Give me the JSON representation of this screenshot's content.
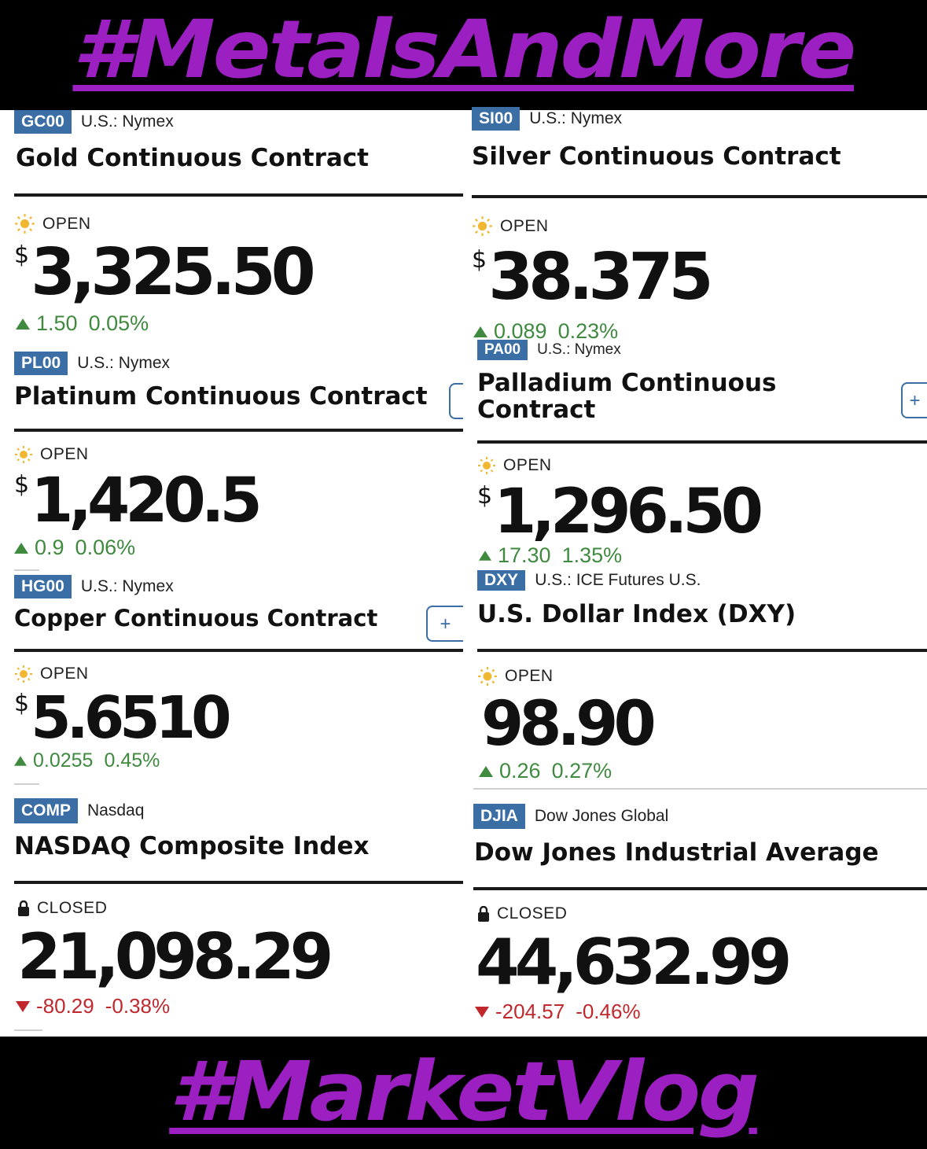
{
  "banners": {
    "top": "#MetalsAndMore",
    "bottom": "#MarketVlog"
  },
  "colors": {
    "banner_text": "#9b1fc1",
    "badge": "#3a6ea5",
    "up": "#3f8a3f",
    "down": "#c0282d"
  },
  "add_button_label": "+",
  "cards": {
    "gold": {
      "symbol": "GC00",
      "exchange": "U.S.: Nymex",
      "name": "Gold Continuous Contract",
      "status": "OPEN",
      "currency": "$",
      "price": "3,325.50",
      "change": "1.50",
      "change_pct": "0.05%",
      "direction": "up"
    },
    "silver": {
      "symbol": "SI00",
      "exchange": "U.S.: Nymex",
      "name": "Silver Continuous Contract",
      "status": "OPEN",
      "currency": "$",
      "price": "38.375",
      "change": "0.089",
      "change_pct": "0.23%",
      "direction": "up"
    },
    "platinum": {
      "symbol": "PL00",
      "exchange": "U.S.: Nymex",
      "name": "Platinum Continuous Contract",
      "status": "OPEN",
      "currency": "$",
      "price": "1,420.5",
      "change": "0.9",
      "change_pct": "0.06%",
      "direction": "up"
    },
    "palladium": {
      "symbol": "PA00",
      "exchange": "U.S.: Nymex",
      "name_line1": "Palladium Continuous",
      "name_line2": "Contract",
      "status": "OPEN",
      "currency": "$",
      "price": "1,296.50",
      "change": "17.30",
      "change_pct": "1.35%",
      "direction": "up"
    },
    "copper": {
      "symbol": "HG00",
      "exchange": "U.S.: Nymex",
      "name": "Copper Continuous Contract",
      "status": "OPEN",
      "currency": "$",
      "price": "5.6510",
      "change": "0.0255",
      "change_pct": "0.45%",
      "direction": "up"
    },
    "dxy": {
      "symbol": "DXY",
      "exchange": "U.S.: ICE Futures U.S.",
      "name": "U.S. Dollar Index (DXY)",
      "status": "OPEN",
      "price": "98.90",
      "change": "0.26",
      "change_pct": "0.27%",
      "direction": "up"
    },
    "nasdaq": {
      "symbol": "COMP",
      "exchange": "Nasdaq",
      "name": "NASDAQ Composite Index",
      "status": "CLOSED",
      "price": "21,098.29",
      "change": "-80.29",
      "change_pct": "-0.38%",
      "direction": "down"
    },
    "djia": {
      "symbol": "DJIA",
      "exchange": "Dow Jones Global",
      "name": "Dow Jones Industrial Average",
      "status": "CLOSED",
      "price": "44,632.99",
      "change": "-204.57",
      "change_pct": "-0.46%",
      "direction": "down"
    }
  }
}
